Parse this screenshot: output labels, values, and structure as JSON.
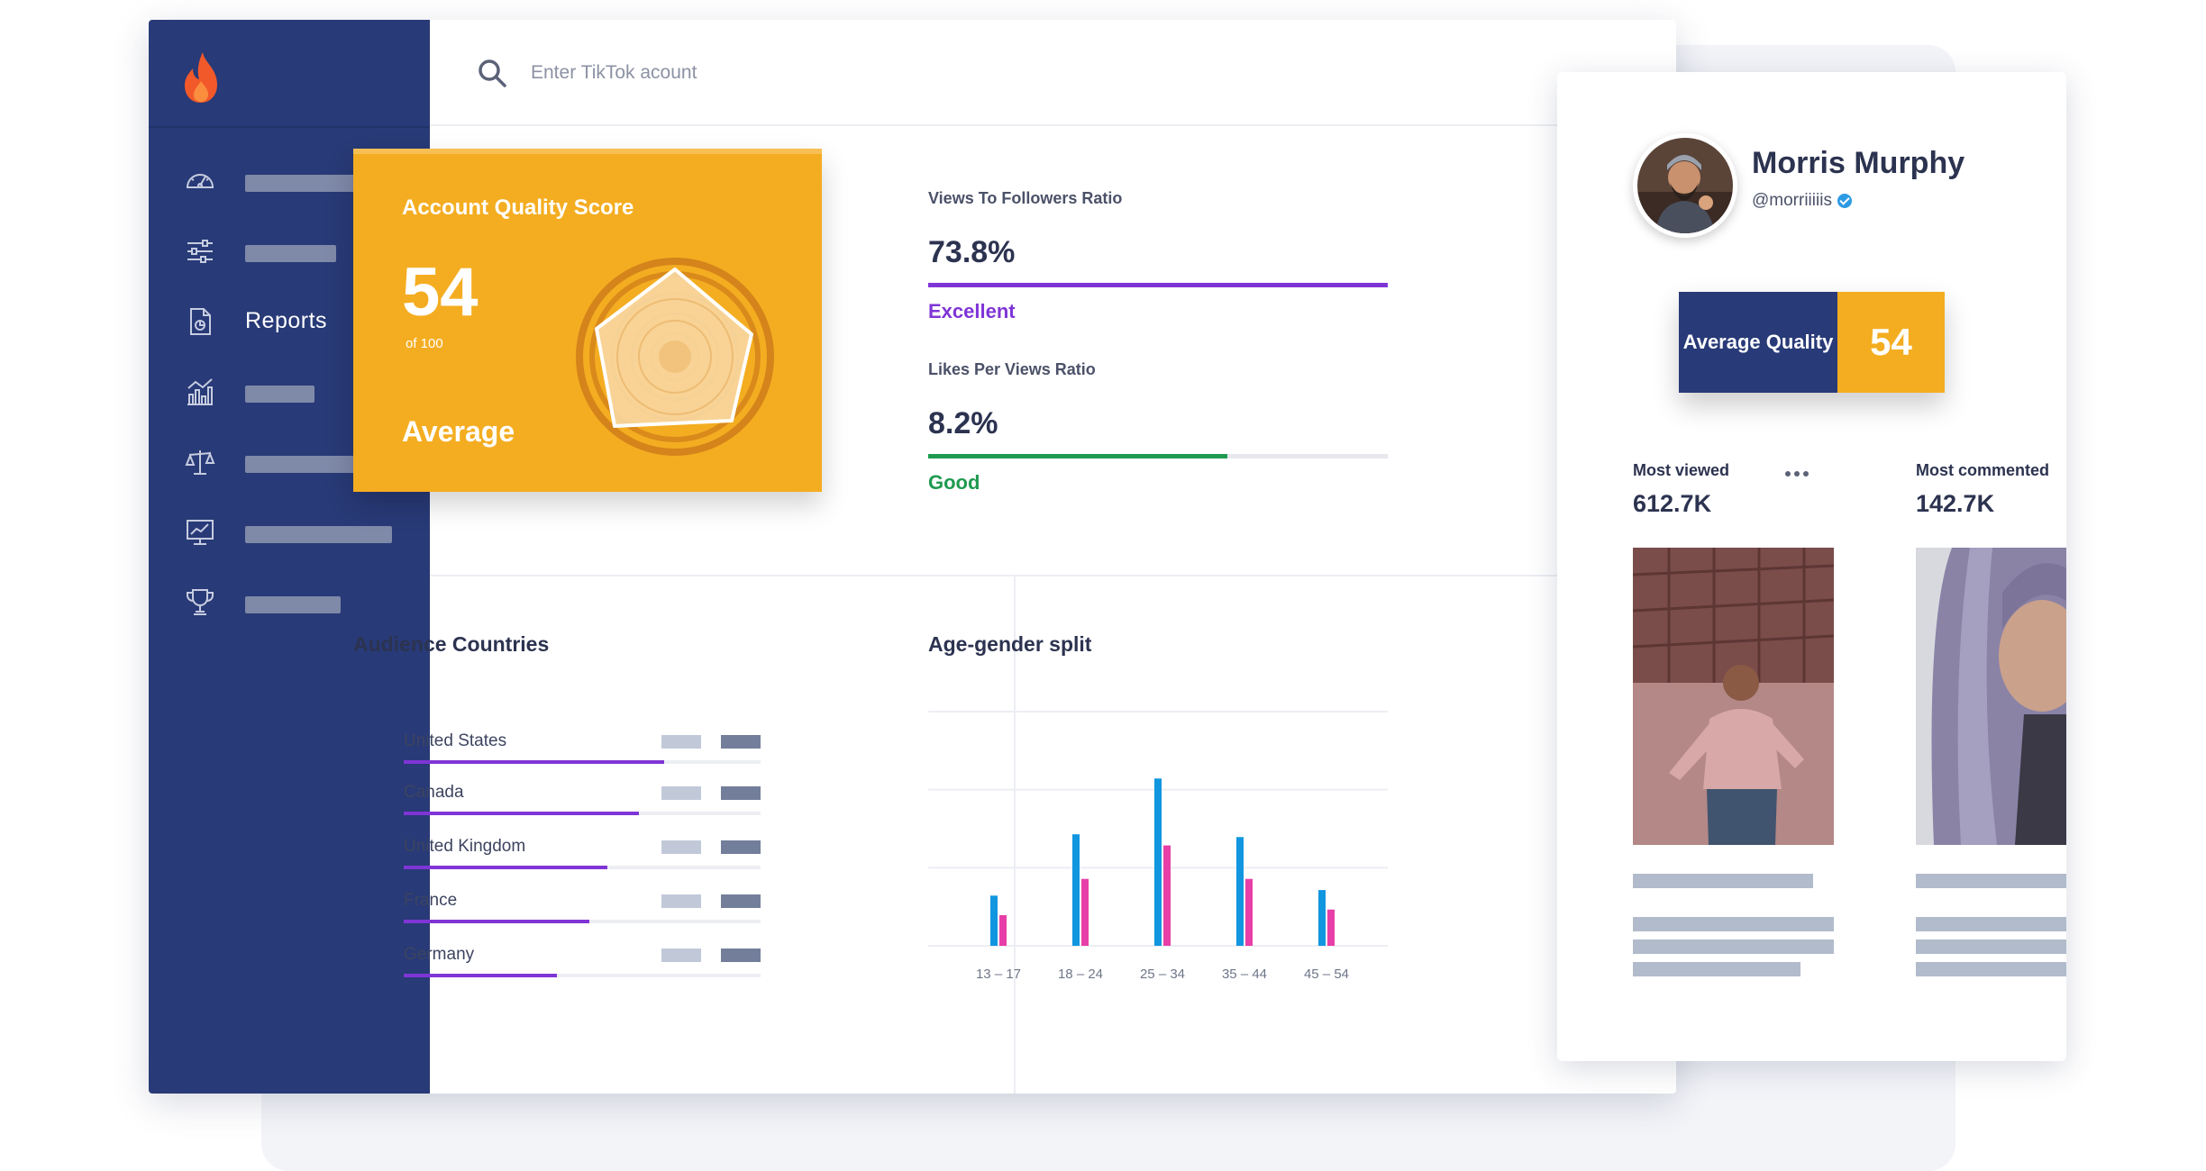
{
  "colors": {
    "sidebar": "#283a77",
    "accent_orange": "#f4ad21",
    "excellent_purple": "#7f35d6",
    "good_green": "#1f9a50",
    "bar_blue": "#1196e0",
    "bar_pink": "#e83ea8"
  },
  "sidebar": {
    "logo_icon": "flame-icon",
    "items": [
      {
        "icon": "dashboard-icon",
        "label": "",
        "bar_fraction": 0.62
      },
      {
        "icon": "sliders-icon",
        "label": "",
        "bar_fraction": 0.42
      },
      {
        "icon": "report-file-icon",
        "label": "Reports",
        "bar_fraction": 0
      },
      {
        "icon": "analytics-chart-icon",
        "label": "",
        "bar_fraction": 0.32
      },
      {
        "icon": "scales-compare-icon",
        "label": "",
        "bar_fraction": 0.62
      },
      {
        "icon": "monitor-trend-icon",
        "label": "",
        "bar_fraction": 0.68
      },
      {
        "icon": "trophy-icon",
        "label": "",
        "bar_fraction": 0.44
      }
    ]
  },
  "search": {
    "placeholder": "Enter TikTok acount",
    "icon": "search-icon"
  },
  "quality_card": {
    "title": "Account Quality Score",
    "score": "54",
    "of_label": "of 100",
    "grade": "Average"
  },
  "metrics": [
    {
      "title": "Views To Followers Ratio",
      "value": "73.8%",
      "grade": "Excellent",
      "fill": 1.0,
      "color": "#7f35d6"
    },
    {
      "title": "Likes Per Views Ratio",
      "value": "8.2%",
      "grade": "Good",
      "fill": 0.65,
      "color": "#1f9a50"
    }
  ],
  "audience": {
    "title": "Audience Countries",
    "countries": [
      {
        "name": "United States",
        "fraction": 0.73
      },
      {
        "name": "Canada",
        "fraction": 0.66
      },
      {
        "name": "United Kingdom",
        "fraction": 0.57
      },
      {
        "name": "France",
        "fraction": 0.52
      },
      {
        "name": "Germany",
        "fraction": 0.43
      }
    ]
  },
  "age_gender": {
    "title": "Age-gender split"
  },
  "chart_data": {
    "type": "bar",
    "title": "Age-gender split",
    "categories": [
      "13 – 17",
      "18 – 24",
      "25 – 34",
      "35 – 44",
      "45 – 54"
    ],
    "series": [
      {
        "values": [
          9,
          20,
          30,
          19.5,
          10
        ]
      },
      {
        "values": [
          5.5,
          12,
          18,
          12,
          6.5
        ]
      }
    ],
    "ylim": [
      0,
      42
    ],
    "grid": true
  },
  "profile": {
    "name": "Morris Murphy",
    "handle": "@morriiiiis",
    "avg_label": "Average Quality",
    "avg_score": "54",
    "posts": [
      {
        "label": "Most viewed",
        "value": "612.7K"
      },
      {
        "label": "Most commented",
        "value": "142.7K"
      }
    ]
  }
}
